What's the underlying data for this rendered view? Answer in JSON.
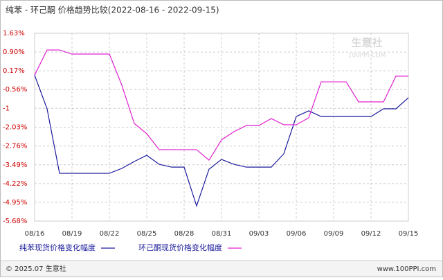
{
  "chart_data": {
    "type": "line",
    "title": "纯苯 - 环己酮 价格趋势比较(2022-08-16 - 2022-09-15)",
    "categories": [
      "08/16",
      null,
      null,
      "08/19",
      null,
      null,
      "08/22",
      null,
      null,
      "08/25",
      null,
      null,
      "08/28",
      null,
      null,
      "08/31",
      null,
      null,
      "09/03",
      null,
      null,
      "09/06",
      null,
      null,
      "09/09",
      null,
      null,
      "09/12",
      null,
      null,
      "09/15"
    ],
    "series": [
      {
        "name": "纯苯现货价格变化幅度",
        "color": "#1a1a9c",
        "values": [
          0.0,
          -1.31,
          -3.82,
          -3.82,
          -3.82,
          -3.82,
          -3.82,
          -3.63,
          -3.36,
          -3.12,
          -3.47,
          -3.58,
          -3.58,
          -5.09,
          -3.66,
          -3.28,
          -3.47,
          -3.58,
          -3.58,
          -3.58,
          -3.06,
          -1.61,
          -1.39,
          -1.61,
          -1.61,
          -1.61,
          -1.61,
          -1.61,
          -1.31,
          -1.31,
          -0.88
        ]
      },
      {
        "name": "环己酮现货价格变化幅度",
        "color": "#e020d0",
        "values": [
          0.0,
          0.98,
          0.98,
          0.82,
          0.82,
          0.82,
          0.82,
          -0.39,
          -1.88,
          -2.28,
          -2.9,
          -2.9,
          -2.9,
          -2.9,
          -3.31,
          -2.52,
          -2.2,
          -1.96,
          -1.96,
          -1.69,
          -1.93,
          -1.93,
          -1.66,
          -0.26,
          -0.26,
          -0.26,
          -1.04,
          -1.04,
          -1.04,
          -0.04,
          -0.04
        ]
      }
    ],
    "ylim": [
      -5.68,
      1.63
    ],
    "yticks": [
      {
        "value": 1.63,
        "label": "1.63%"
      },
      {
        "value": 0.9,
        "label": "0.90%"
      },
      {
        "value": 0.17,
        "label": "0.17%"
      },
      {
        "value": -0.56,
        "label": "-0.56%"
      },
      {
        "value": -1.29,
        "label": "-1"
      },
      {
        "value": -2.03,
        "label": "-2.03%"
      },
      {
        "value": -2.76,
        "label": "-2.76%"
      },
      {
        "value": -3.49,
        "label": "-3.49%"
      },
      {
        "value": -4.22,
        "label": "-4.22%"
      },
      {
        "value": -4.95,
        "label": "-4.95%"
      },
      {
        "value": -5.68,
        "label": "-5.68%"
      }
    ],
    "grid": true,
    "watermark": [
      "生意社",
      "100PPI.COM"
    ],
    "footer_left": "© 2025.07 生意社",
    "footer_right": "www.100PPI.com"
  }
}
